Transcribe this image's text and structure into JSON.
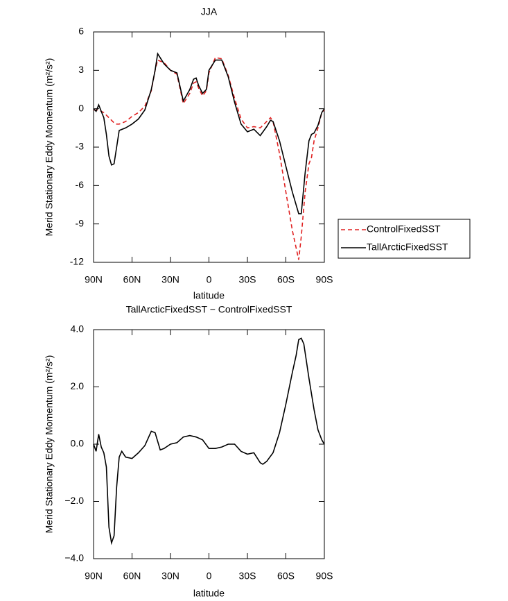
{
  "chart_data": [
    {
      "type": "line",
      "title": "JJA",
      "xlabel": "latitude",
      "ylabel": "Merid Stationary Eddy Momentum (m²/s²)",
      "x": [
        90,
        88,
        86,
        84,
        82,
        80,
        78,
        76,
        74,
        72,
        70,
        65,
        60,
        55,
        50,
        45,
        42,
        40,
        35,
        30,
        25,
        20,
        15,
        12,
        10,
        8,
        5,
        2,
        0,
        -5,
        -10,
        -15,
        -20,
        -25,
        -30,
        -35,
        -40,
        -45,
        -48,
        -50,
        -55,
        -60,
        -65,
        -70,
        -72,
        -75,
        -78,
        -80,
        -82,
        -85,
        -88,
        -90
      ],
      "series": [
        {
          "name": "ControlFixedSST",
          "color": "#e02020",
          "dash": true,
          "values": [
            -0.1,
            -0.1,
            -0.1,
            -0.2,
            -0.3,
            -0.5,
            -0.7,
            -0.9,
            -1.1,
            -1.2,
            -1.2,
            -1.0,
            -0.6,
            -0.3,
            0.2,
            1.4,
            3,
            3.8,
            3.6,
            3.0,
            2.7,
            0.4,
            1.2,
            2.0,
            2.1,
            1.6,
            1.0,
            1.4,
            2.8,
            4.0,
            3.9,
            2.6,
            0.8,
            -0.8,
            -1.5,
            -1.4,
            -1.5,
            -1.0,
            -0.7,
            -1.0,
            -3.5,
            -6.5,
            -9.5,
            -11.8,
            -10,
            -6.5,
            -4.3,
            -3.8,
            -2.5,
            -1.5,
            -0.3,
            -0.1
          ]
        },
        {
          "name": "TallArcticFixedSST",
          "color": "#000000",
          "dash": false,
          "values": [
            0,
            -0.2,
            0.3,
            -0.2,
            -0.7,
            -2,
            -3.7,
            -4.4,
            -4.3,
            -3,
            -1.7,
            -1.5,
            -1.2,
            -0.8,
            -0.1,
            1.5,
            3,
            4.3,
            3.5,
            3.0,
            2.8,
            0.6,
            1.5,
            2.3,
            2.4,
            1.8,
            1.2,
            1.5,
            3,
            3.8,
            3.8,
            2.5,
            0.5,
            -1.2,
            -1.8,
            -1.6,
            -2.1,
            -1.4,
            -0.9,
            -1.0,
            -2.5,
            -4.5,
            -6.5,
            -8.2,
            -8.2,
            -5,
            -2.5,
            -2,
            -1.9,
            -1.3,
            -0.3,
            0
          ]
        }
      ],
      "xlim": [
        90,
        -90
      ],
      "xticks": [
        {
          "value": 90,
          "label": "90N"
        },
        {
          "value": 60,
          "label": "60N"
        },
        {
          "value": 30,
          "label": "30N"
        },
        0,
        {
          "value": -30,
          "label": "30S"
        },
        {
          "value": -60,
          "label": "60S"
        },
        {
          "value": -90,
          "label": "90S"
        }
      ],
      "ylim": [
        -12,
        6
      ],
      "yticks": [
        -12,
        -9,
        -6,
        -3,
        0,
        3,
        6
      ],
      "legend": "right"
    },
    {
      "type": "line",
      "title": "TallArcticFixedSST − ControlFixedSST",
      "xlabel": "latitude",
      "ylabel": "Merid Stationary Eddy Momentum (m²/s²)",
      "x": [
        90,
        88,
        86,
        84,
        82,
        80,
        78,
        76,
        74,
        72,
        70,
        68,
        65,
        60,
        55,
        50,
        45,
        42,
        38,
        35,
        30,
        25,
        20,
        15,
        10,
        5,
        0,
        -5,
        -10,
        -15,
        -20,
        -25,
        -30,
        -35,
        -40,
        -42,
        -45,
        -50,
        -55,
        -60,
        -65,
        -68,
        -70,
        -72,
        -74,
        -78,
        -82,
        -85,
        -88,
        -90
      ],
      "series": [
        {
          "color": "#000000",
          "dash": false,
          "values": [
            0,
            -0.25,
            0.35,
            -0.1,
            -0.3,
            -0.8,
            -2.9,
            -3.45,
            -3.2,
            -1.5,
            -0.45,
            -0.25,
            -0.45,
            -0.5,
            -0.3,
            -0.05,
            0.45,
            0.4,
            -0.2,
            -0.15,
            0,
            0.05,
            0.25,
            0.3,
            0.25,
            0.15,
            -0.15,
            -0.15,
            -0.1,
            0,
            0,
            -0.25,
            -0.35,
            -0.3,
            -0.65,
            -0.7,
            -0.6,
            -0.3,
            0.4,
            1.4,
            2.5,
            3.1,
            3.65,
            3.7,
            3.5,
            2.3,
            1.2,
            0.5,
            0.15,
            0
          ]
        }
      ],
      "xlim": [
        90,
        -90
      ],
      "xticks": [
        {
          "value": 90,
          "label": "90N"
        },
        {
          "value": 60,
          "label": "60N"
        },
        {
          "value": 30,
          "label": "30N"
        },
        0,
        {
          "value": -30,
          "label": "30S"
        },
        {
          "value": -60,
          "label": "60S"
        },
        {
          "value": -90,
          "label": "90S"
        }
      ],
      "ylim": [
        -4,
        4
      ],
      "yticks": [
        {
          "value": -4,
          "label": "−4.0"
        },
        {
          "value": -2,
          "label": "−2.0"
        },
        {
          "value": 0,
          "label": "0.0"
        },
        {
          "value": 2,
          "label": "2.0"
        },
        {
          "value": 4,
          "label": "4.0"
        }
      ]
    }
  ]
}
